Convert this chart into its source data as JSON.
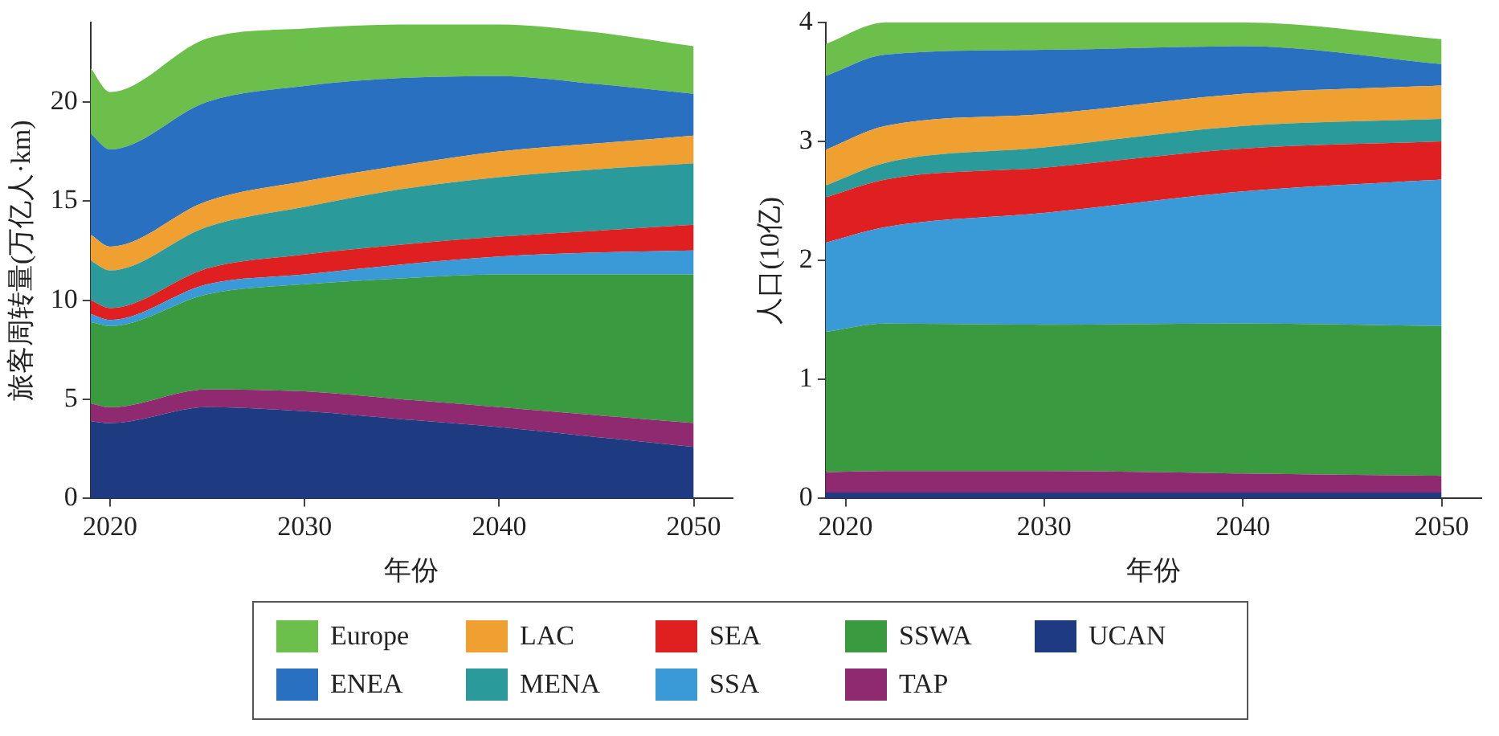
{
  "chart_data": [
    {
      "type": "area",
      "stacked": true,
      "xlabel": "年份",
      "ylabel": "旅客周转量(万亿人·km)",
      "x": [
        2019,
        2020,
        2025,
        2030,
        2035,
        2040,
        2045,
        2050
      ],
      "xlim": [
        2019,
        2052
      ],
      "xticks": [
        2020,
        2030,
        2040,
        2050
      ],
      "ylim": [
        0,
        24
      ],
      "yticks": [
        0,
        5,
        10,
        15,
        20
      ],
      "grid": false,
      "legend": "bottom",
      "series": [
        {
          "name": "UCAN",
          "color": "#1e3a80",
          "values": [
            3.9,
            3.8,
            4.6,
            4.4,
            4.0,
            3.6,
            3.1,
            2.6
          ]
        },
        {
          "name": "TAP",
          "color": "#902a70",
          "values": [
            0.9,
            0.8,
            0.9,
            1.0,
            1.0,
            1.0,
            1.1,
            1.2
          ]
        },
        {
          "name": "SSWA",
          "color": "#3a9a40",
          "values": [
            4.1,
            4.1,
            4.8,
            5.4,
            6.1,
            6.7,
            7.1,
            7.5
          ]
        },
        {
          "name": "SSA",
          "color": "#3a9ad8",
          "values": [
            0.4,
            0.3,
            0.5,
            0.5,
            0.7,
            0.9,
            1.1,
            1.2
          ]
        },
        {
          "name": "SEA",
          "color": "#e02020",
          "values": [
            0.7,
            0.6,
            0.8,
            1.0,
            1.0,
            1.0,
            1.1,
            1.3
          ]
        },
        {
          "name": "MENA",
          "color": "#2a9a9a",
          "values": [
            2.0,
            1.9,
            2.1,
            2.4,
            2.8,
            3.0,
            3.1,
            3.1
          ]
        },
        {
          "name": "LAC",
          "color": "#f0a030",
          "values": [
            1.3,
            1.2,
            1.3,
            1.3,
            1.2,
            1.3,
            1.3,
            1.4
          ]
        },
        {
          "name": "ENEA",
          "color": "#2a70c0",
          "values": [
            5.1,
            4.9,
            5.0,
            4.8,
            4.4,
            3.8,
            3.0,
            2.1
          ]
        },
        {
          "name": "Europe",
          "color": "#6dbf4b",
          "values": [
            3.3,
            2.9,
            3.2,
            2.9,
            2.7,
            2.6,
            2.6,
            2.4
          ]
        }
      ]
    },
    {
      "type": "area",
      "stacked": true,
      "xlabel": "年份",
      "ylabel": "人口(10亿)",
      "x": [
        2019,
        2022,
        2030,
        2040,
        2050
      ],
      "xlim": [
        2019,
        2052
      ],
      "xticks": [
        2020,
        2030,
        2040,
        2050
      ],
      "ylim": [
        0,
        4
      ],
      "yticks": [
        0,
        1,
        2,
        3,
        4
      ],
      "grid": false,
      "legend": "bottom",
      "series": [
        {
          "name": "UCAN",
          "color": "#1e3a80",
          "values": [
            0.05,
            0.05,
            0.05,
            0.05,
            0.05
          ]
        },
        {
          "name": "TAP",
          "color": "#902a70",
          "values": [
            0.17,
            0.18,
            0.18,
            0.16,
            0.14
          ]
        },
        {
          "name": "SSWA",
          "color": "#3a9a40",
          "values": [
            1.18,
            1.24,
            1.23,
            1.26,
            1.26
          ]
        },
        {
          "name": "SSA",
          "color": "#3a9ad8",
          "values": [
            0.75,
            0.81,
            0.94,
            1.11,
            1.23
          ]
        },
        {
          "name": "SEA",
          "color": "#e02020",
          "values": [
            0.38,
            0.4,
            0.38,
            0.36,
            0.32
          ]
        },
        {
          "name": "MENA",
          "color": "#2a9a9a",
          "values": [
            0.1,
            0.14,
            0.17,
            0.19,
            0.19
          ]
        },
        {
          "name": "LAC",
          "color": "#f0a030",
          "values": [
            0.3,
            0.31,
            0.28,
            0.27,
            0.28
          ]
        },
        {
          "name": "ENEA",
          "color": "#2a70c0",
          "values": [
            0.62,
            0.6,
            0.54,
            0.4,
            0.18
          ]
        },
        {
          "name": "Europe",
          "color": "#6dbf4b",
          "values": [
            0.27,
            0.27,
            0.23,
            0.2,
            0.21
          ]
        }
      ]
    }
  ]
}
